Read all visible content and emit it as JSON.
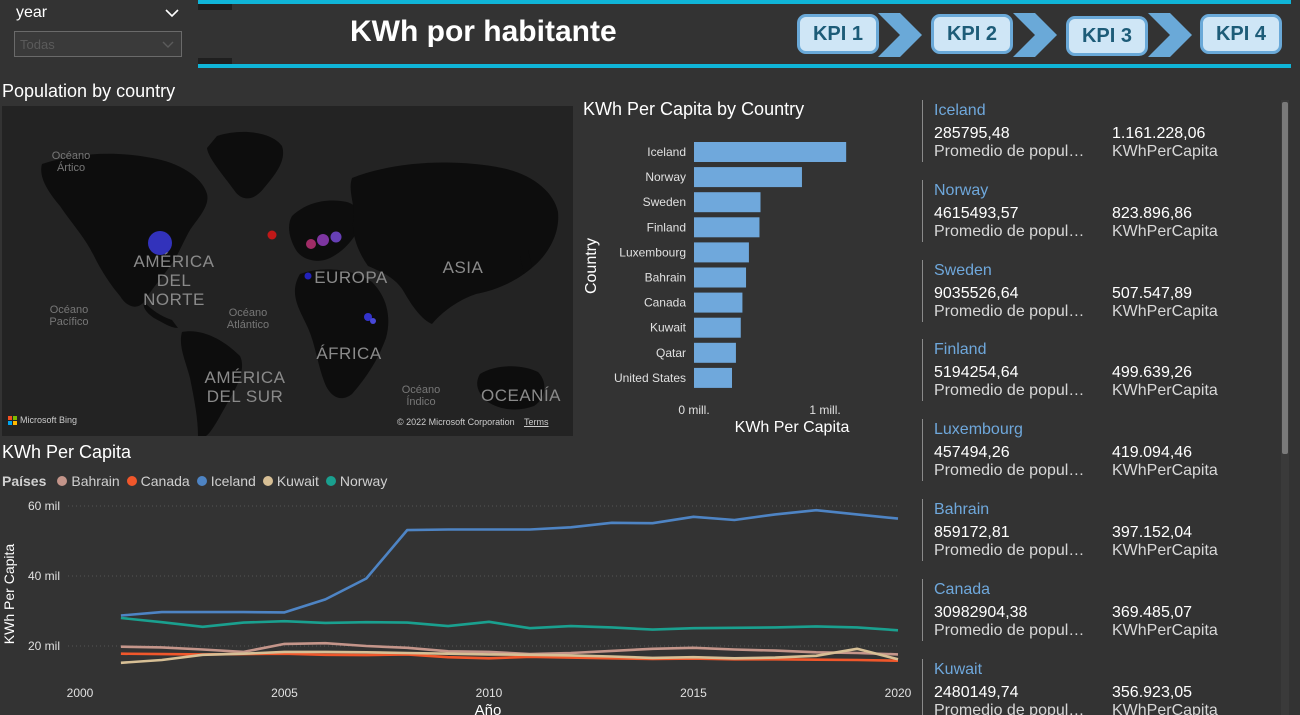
{
  "slicer": {
    "title": "year",
    "value": "Todas"
  },
  "header": {
    "title": "KWh por habitante",
    "kpis": [
      "KPI 1",
      "KPI 2",
      "KPI 3",
      "KPI 4"
    ]
  },
  "map": {
    "title": "Population by country",
    "labels": {
      "oceano_artico": "Océano Ártico",
      "america_norte": "AMÉRICA DEL NORTE",
      "europa": "EUROPA",
      "asia": "ASIA",
      "oceano_pacifico": "Océano Pacífico",
      "oceano_atlantico": "Océano Atlántico",
      "africa": "ÁFRICA",
      "america_sur": "AMÉRICA DEL SUR",
      "oceano_indico": "Océano Índico",
      "oceania": "OCEANÍA"
    },
    "bing": "Microsoft Bing",
    "copyright": "© 2022 Microsoft Corporation",
    "terms": "Terms"
  },
  "bar_chart": {
    "title": "KWh Per Capita by Country",
    "ylabel": "Country",
    "xlabel": "KWh Per Capita",
    "ticks": [
      "0 mill.",
      "1 mill."
    ]
  },
  "line_chart": {
    "title": "KWh Per Capita",
    "legend_title": "Países",
    "ylabel": "KWh Per Capita",
    "xlabel": "Año",
    "yticks": [
      "60 mil",
      "40 mil",
      "20 mil"
    ],
    "xticks": [
      "2000",
      "2005",
      "2010",
      "2015",
      "2020"
    ]
  },
  "chart_data": [
    {
      "type": "bar",
      "title": "KWh Per Capita by Country",
      "xlabel": "KWh Per Capita",
      "ylabel": "Country",
      "categories": [
        "Iceland",
        "Norway",
        "Sweden",
        "Finland",
        "Luxembourg",
        "Bahrain",
        "Canada",
        "Kuwait",
        "Qatar",
        "United States"
      ],
      "values": [
        1161228.06,
        823896.86,
        507547.89,
        499639.26,
        419094.46,
        397152.04,
        369485.07,
        356923.05,
        320000,
        290000
      ],
      "xlim": [
        0,
        1160000
      ],
      "color": "#6fa8dc"
    },
    {
      "type": "line",
      "title": "KWh Per Capita",
      "xlabel": "Año",
      "ylabel": "KWh Per Capita",
      "x": [
        2001,
        2002,
        2003,
        2004,
        2005,
        2006,
        2007,
        2008,
        2009,
        2010,
        2011,
        2012,
        2013,
        2014,
        2015,
        2016,
        2017,
        2018,
        2019,
        2020
      ],
      "ylim": [
        13000,
        63000
      ],
      "grid": true,
      "legend": "top-left",
      "series": [
        {
          "name": "Bahrain",
          "color": "#c4958a",
          "values": [
            19800,
            19600,
            19000,
            18300,
            20600,
            20800,
            20000,
            19500,
            18500,
            18300,
            17700,
            18000,
            18600,
            19200,
            19500,
            19000,
            18700,
            18200,
            18000,
            17600
          ]
        },
        {
          "name": "Canada",
          "color": "#f0572b",
          "values": [
            17800,
            17700,
            17600,
            17700,
            17800,
            17500,
            17400,
            17600,
            16800,
            16500,
            16900,
            16700,
            16500,
            16300,
            16400,
            16200,
            16200,
            16100,
            16000,
            15800
          ]
        },
        {
          "name": "Iceland",
          "color": "#4e84c4",
          "values": [
            28700,
            29700,
            29700,
            29700,
            29600,
            33300,
            39300,
            53100,
            53300,
            53300,
            53300,
            53900,
            55200,
            55100,
            56900,
            56000,
            57600,
            58800,
            57600,
            56400
          ]
        },
        {
          "name": "Kuwait",
          "color": "#d7bf95",
          "values": [
            15200,
            16000,
            17500,
            17800,
            18300,
            18300,
            18200,
            18000,
            17800,
            17600,
            17500,
            17300,
            17000,
            16600,
            16800,
            16500,
            16700,
            17200,
            19200,
            16200
          ]
        },
        {
          "name": "Norway",
          "color": "#1aa08f",
          "values": [
            28000,
            26800,
            25500,
            26700,
            27100,
            26600,
            26800,
            26700,
            25700,
            26900,
            25100,
            25700,
            25300,
            24700,
            25100,
            25200,
            25300,
            25600,
            25300,
            24500
          ]
        }
      ]
    }
  ],
  "cards": [
    {
      "name": "Iceland",
      "population": "285795,48",
      "kwh": "1.161.228,06"
    },
    {
      "name": "Norway",
      "population": "4615493,57",
      "kwh": "823.896,86"
    },
    {
      "name": "Sweden",
      "population": "9035526,64",
      "kwh": "507.547,89"
    },
    {
      "name": "Finland",
      "population": "5194254,64",
      "kwh": "499.639,26"
    },
    {
      "name": "Luxembourg",
      "population": "457494,26",
      "kwh": "419.094,46"
    },
    {
      "name": "Bahrain",
      "population": "859172,81",
      "kwh": "397.152,04"
    },
    {
      "name": "Canada",
      "population": "30982904,38",
      "kwh": "369.485,07"
    },
    {
      "name": "Kuwait",
      "population": "2480149,74",
      "kwh": "356.923,05"
    }
  ],
  "card_labels": {
    "population": "Promedio de popul…",
    "kwh": "KWhPerCapita"
  }
}
